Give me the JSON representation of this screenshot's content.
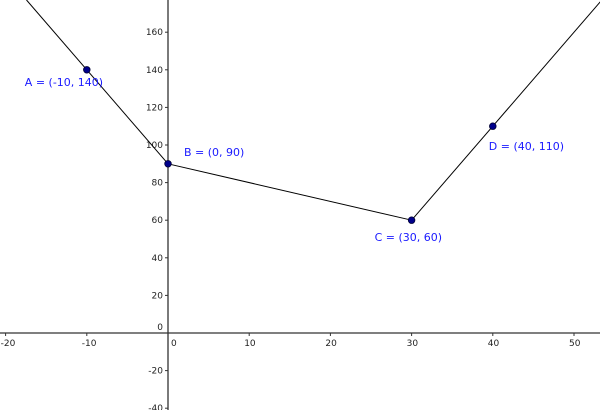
{
  "chart_data": {
    "type": "line",
    "xlim": [
      -20.7,
      53
    ],
    "ylim": [
      -41,
      177
    ],
    "x_ticks": [
      -20,
      -10,
      0,
      10,
      20,
      30,
      40,
      50
    ],
    "y_ticks": [
      -40,
      -20,
      0,
      20,
      40,
      60,
      80,
      100,
      120,
      140,
      160
    ],
    "grid": false,
    "points": [
      {
        "name": "A",
        "x": -10,
        "y": 140,
        "label": "A = (-10, 140)"
      },
      {
        "name": "B",
        "x": 0,
        "y": 90,
        "label": "B = (0, 90)"
      },
      {
        "name": "C",
        "x": 30,
        "y": 60,
        "label": "C = (30, 60)"
      },
      {
        "name": "D",
        "x": 40,
        "y": 110,
        "label": "D = (40, 110)"
      }
    ],
    "segments": [
      [
        "A",
        "B"
      ],
      [
        "B",
        "C"
      ],
      [
        "C",
        "D"
      ]
    ],
    "rays_extended": [
      "A",
      "D"
    ],
    "colors": {
      "point": "#00008b",
      "label": "#1a1aff",
      "line": "#000000",
      "axis": "#333333"
    }
  }
}
